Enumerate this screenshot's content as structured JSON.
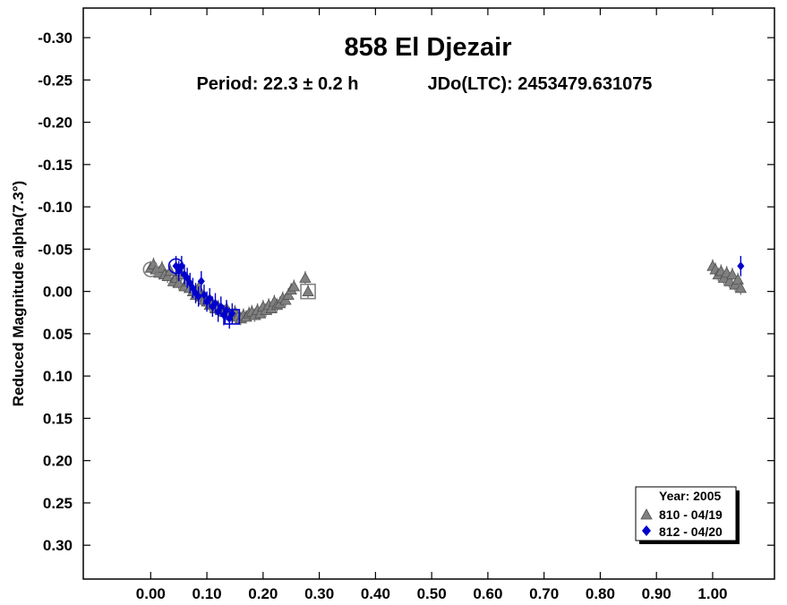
{
  "chart_data": {
    "type": "scatter",
    "title": "858 El Djezair",
    "subtitle_period": "Period: 22.3 ± 0.2 h",
    "subtitle_epoch": "JDo(LTC): 2453479.631075",
    "xlabel": "",
    "ylabel": "Reduced Magnitude alpha(7.3°)",
    "xlim": [
      -0.12,
      1.11
    ],
    "ylim": [
      -0.335,
      0.34
    ],
    "y_inverted": true,
    "x_ticks": [
      "0.00",
      "0.10",
      "0.20",
      "0.30",
      "0.40",
      "0.50",
      "0.60",
      "0.70",
      "0.80",
      "0.90",
      "1.00"
    ],
    "y_ticks": [
      "-0.30",
      "-0.25",
      "-0.20",
      "-0.15",
      "-0.10",
      "-0.05",
      "0.00",
      "0.05",
      "0.10",
      "0.15",
      "0.20",
      "0.25",
      "0.30"
    ],
    "grid": false,
    "legend_position": "bottom-right",
    "legend_title": "Year: 2005",
    "colors": {
      "gray_series": "#808080",
      "blue_series": "#0000cc"
    },
    "series": [
      {
        "name": "810 - 04/19",
        "marker": "triangle",
        "color": "#808080",
        "error": 0.008,
        "points": [
          [
            0.0,
            -0.028
          ],
          [
            0.005,
            -0.032
          ],
          [
            0.01,
            -0.026
          ],
          [
            0.015,
            -0.022
          ],
          [
            0.02,
            -0.028
          ],
          [
            0.025,
            -0.02
          ],
          [
            0.03,
            -0.018
          ],
          [
            0.035,
            -0.024
          ],
          [
            0.04,
            -0.012
          ],
          [
            0.045,
            -0.016
          ],
          [
            0.05,
            -0.01
          ],
          [
            0.055,
            -0.02
          ],
          [
            0.06,
            -0.006
          ],
          [
            0.065,
            -0.012
          ],
          [
            0.07,
            -0.004
          ],
          [
            0.075,
            0.0
          ],
          [
            0.08,
            0.004
          ],
          [
            0.085,
            -0.004
          ],
          [
            0.09,
            0.006
          ],
          [
            0.095,
            0.01
          ],
          [
            0.1,
            0.012
          ],
          [
            0.105,
            0.016
          ],
          [
            0.11,
            0.014
          ],
          [
            0.115,
            0.02
          ],
          [
            0.12,
            0.018
          ],
          [
            0.125,
            0.022
          ],
          [
            0.13,
            0.024
          ],
          [
            0.135,
            0.02
          ],
          [
            0.14,
            0.026
          ],
          [
            0.145,
            0.028
          ],
          [
            0.15,
            0.024
          ],
          [
            0.155,
            0.03
          ],
          [
            0.16,
            0.032
          ],
          [
            0.165,
            0.028
          ],
          [
            0.17,
            0.03
          ],
          [
            0.175,
            0.026
          ],
          [
            0.18,
            0.024
          ],
          [
            0.185,
            0.028
          ],
          [
            0.19,
            0.022
          ],
          [
            0.195,
            0.026
          ],
          [
            0.2,
            0.018
          ],
          [
            0.205,
            0.022
          ],
          [
            0.21,
            0.016
          ],
          [
            0.215,
            0.02
          ],
          [
            0.22,
            0.012
          ],
          [
            0.225,
            0.016
          ],
          [
            0.23,
            0.014
          ],
          [
            0.235,
            0.008
          ],
          [
            0.24,
            0.01
          ],
          [
            0.245,
            0.004
          ],
          [
            0.25,
            -0.002
          ],
          [
            0.255,
            -0.006
          ],
          [
            0.275,
            -0.016
          ],
          [
            0.28,
            0.0
          ],
          [
            1.0,
            -0.03
          ],
          [
            1.005,
            -0.026
          ],
          [
            1.01,
            -0.02
          ],
          [
            1.015,
            -0.024
          ],
          [
            1.02,
            -0.016
          ],
          [
            1.025,
            -0.022
          ],
          [
            1.03,
            -0.012
          ],
          [
            1.035,
            -0.02
          ],
          [
            1.04,
            -0.008
          ],
          [
            1.045,
            -0.014
          ],
          [
            1.05,
            -0.004
          ]
        ]
      },
      {
        "name": "812 - 04/20",
        "marker": "diamond",
        "color": "#0000cc",
        "error": 0.012,
        "points": [
          [
            0.045,
            -0.03
          ],
          [
            0.05,
            -0.024
          ],
          [
            0.055,
            -0.03
          ],
          [
            0.06,
            -0.02
          ],
          [
            0.065,
            -0.016
          ],
          [
            0.07,
            -0.01
          ],
          [
            0.075,
            -0.004
          ],
          [
            0.08,
            0.002
          ],
          [
            0.085,
            0.006
          ],
          [
            0.09,
            -0.012
          ],
          [
            0.095,
            0.004
          ],
          [
            0.1,
            0.012
          ],
          [
            0.105,
            0.008
          ],
          [
            0.11,
            0.018
          ],
          [
            0.115,
            0.014
          ],
          [
            0.12,
            0.024
          ],
          [
            0.125,
            0.018
          ],
          [
            0.13,
            0.028
          ],
          [
            0.135,
            0.022
          ],
          [
            0.14,
            0.032
          ],
          [
            0.145,
            0.026
          ],
          [
            1.05,
            -0.03
          ]
        ]
      }
    ],
    "open_markers": [
      {
        "shape": "circle",
        "color": "#808080",
        "x": 0.0,
        "y": -0.026
      },
      {
        "shape": "circle",
        "color": "#0000cc",
        "x": 0.045,
        "y": -0.03
      },
      {
        "shape": "square",
        "color": "#808080",
        "x": 0.28,
        "y": 0.0
      },
      {
        "shape": "square",
        "color": "#0000cc",
        "x": 0.145,
        "y": 0.03
      }
    ]
  }
}
